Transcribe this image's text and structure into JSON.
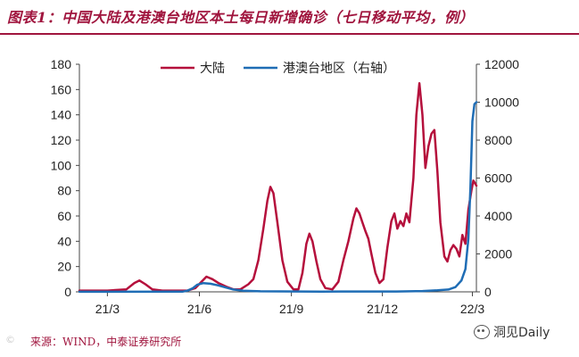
{
  "title": "图表1：中国大陆及港澳台地区本土每日新增确诊（七日移动平均，例）",
  "source": "来源：WIND，中泰证券研究所",
  "watermark": "洞见Daily",
  "watermark_left": "©",
  "chart_data": {
    "type": "line",
    "x_start": "2021-02-01",
    "x_end": "2022-03-05",
    "xticks": [
      "21/3",
      "21/6",
      "21/9",
      "21/12",
      "22/3"
    ],
    "xtick_dates": [
      "2021-03-01",
      "2021-06-01",
      "2021-09-01",
      "2021-12-01",
      "2022-03-01"
    ],
    "y_left": {
      "min": 0,
      "max": 180,
      "ticks": [
        0,
        20,
        40,
        60,
        80,
        100,
        120,
        140,
        160,
        180
      ]
    },
    "y_right": {
      "min": 0,
      "max": 12000,
      "ticks": [
        0,
        2000,
        4000,
        6000,
        8000,
        10000,
        12000
      ]
    },
    "legend": {
      "position": "top-center"
    },
    "colors": {
      "mainland": "#b5103c",
      "hmt": "#1f6db5"
    },
    "series": [
      {
        "name": "大陆",
        "axis": "left",
        "points": [
          [
            "2021-02-01",
            1
          ],
          [
            "2021-03-01",
            1
          ],
          [
            "2021-03-20",
            2
          ],
          [
            "2021-03-28",
            7
          ],
          [
            "2021-04-02",
            9
          ],
          [
            "2021-04-08",
            6
          ],
          [
            "2021-04-15",
            2
          ],
          [
            "2021-04-25",
            1
          ],
          [
            "2021-05-20",
            1
          ],
          [
            "2021-05-28",
            3
          ],
          [
            "2021-06-03",
            8
          ],
          [
            "2021-06-08",
            12
          ],
          [
            "2021-06-14",
            10
          ],
          [
            "2021-06-20",
            7
          ],
          [
            "2021-06-28",
            4
          ],
          [
            "2021-07-05",
            2
          ],
          [
            "2021-07-12",
            2
          ],
          [
            "2021-07-20",
            6
          ],
          [
            "2021-07-25",
            10
          ],
          [
            "2021-07-30",
            25
          ],
          [
            "2021-08-04",
            50
          ],
          [
            "2021-08-08",
            72
          ],
          [
            "2021-08-11",
            83
          ],
          [
            "2021-08-14",
            78
          ],
          [
            "2021-08-18",
            55
          ],
          [
            "2021-08-23",
            25
          ],
          [
            "2021-08-28",
            8
          ],
          [
            "2021-09-03",
            2
          ],
          [
            "2021-09-08",
            2
          ],
          [
            "2021-09-12",
            15
          ],
          [
            "2021-09-16",
            38
          ],
          [
            "2021-09-19",
            46
          ],
          [
            "2021-09-22",
            40
          ],
          [
            "2021-09-26",
            24
          ],
          [
            "2021-09-30",
            10
          ],
          [
            "2021-10-05",
            3
          ],
          [
            "2021-10-12",
            2
          ],
          [
            "2021-10-18",
            8
          ],
          [
            "2021-10-23",
            25
          ],
          [
            "2021-10-28",
            40
          ],
          [
            "2021-11-02",
            58
          ],
          [
            "2021-11-05",
            66
          ],
          [
            "2021-11-08",
            62
          ],
          [
            "2021-11-11",
            55
          ],
          [
            "2021-11-14",
            48
          ],
          [
            "2021-11-17",
            42
          ],
          [
            "2021-11-20",
            30
          ],
          [
            "2021-11-24",
            15
          ],
          [
            "2021-11-28",
            7
          ],
          [
            "2021-12-02",
            10
          ],
          [
            "2021-12-06",
            35
          ],
          [
            "2021-12-10",
            56
          ],
          [
            "2021-12-13",
            62
          ],
          [
            "2021-12-16",
            50
          ],
          [
            "2021-12-19",
            56
          ],
          [
            "2021-12-22",
            52
          ],
          [
            "2021-12-25",
            62
          ],
          [
            "2021-12-28",
            55
          ],
          [
            "2022-01-01",
            90
          ],
          [
            "2022-01-04",
            140
          ],
          [
            "2022-01-07",
            165
          ],
          [
            "2022-01-10",
            140
          ],
          [
            "2022-01-13",
            98
          ],
          [
            "2022-01-16",
            115
          ],
          [
            "2022-01-19",
            125
          ],
          [
            "2022-01-22",
            128
          ],
          [
            "2022-01-25",
            95
          ],
          [
            "2022-01-28",
            55
          ],
          [
            "2022-02-01",
            28
          ],
          [
            "2022-02-04",
            24
          ],
          [
            "2022-02-07",
            33
          ],
          [
            "2022-02-10",
            37
          ],
          [
            "2022-02-13",
            34
          ],
          [
            "2022-02-16",
            28
          ],
          [
            "2022-02-19",
            45
          ],
          [
            "2022-02-22",
            38
          ],
          [
            "2022-02-25",
            65
          ],
          [
            "2022-02-28",
            80
          ],
          [
            "2022-03-02",
            88
          ],
          [
            "2022-03-05",
            84
          ]
        ]
      },
      {
        "name": "港澳台地区（右轴）",
        "axis": "right",
        "points": [
          [
            "2021-02-01",
            5
          ],
          [
            "2021-05-15",
            10
          ],
          [
            "2021-05-20",
            60
          ],
          [
            "2021-05-25",
            180
          ],
          [
            "2021-05-30",
            380
          ],
          [
            "2021-06-05",
            460
          ],
          [
            "2021-06-12",
            430
          ],
          [
            "2021-06-20",
            340
          ],
          [
            "2021-06-28",
            220
          ],
          [
            "2021-07-05",
            120
          ],
          [
            "2021-07-15",
            60
          ],
          [
            "2021-08-01",
            30
          ],
          [
            "2021-10-01",
            15
          ],
          [
            "2021-12-15",
            20
          ],
          [
            "2022-01-10",
            40
          ],
          [
            "2022-01-25",
            80
          ],
          [
            "2022-02-05",
            120
          ],
          [
            "2022-02-12",
            250
          ],
          [
            "2022-02-18",
            600
          ],
          [
            "2022-02-22",
            1200
          ],
          [
            "2022-02-25",
            2800
          ],
          [
            "2022-02-27",
            5500
          ],
          [
            "2022-03-01",
            9000
          ],
          [
            "2022-03-03",
            9900
          ],
          [
            "2022-03-05",
            10000
          ]
        ]
      }
    ]
  }
}
